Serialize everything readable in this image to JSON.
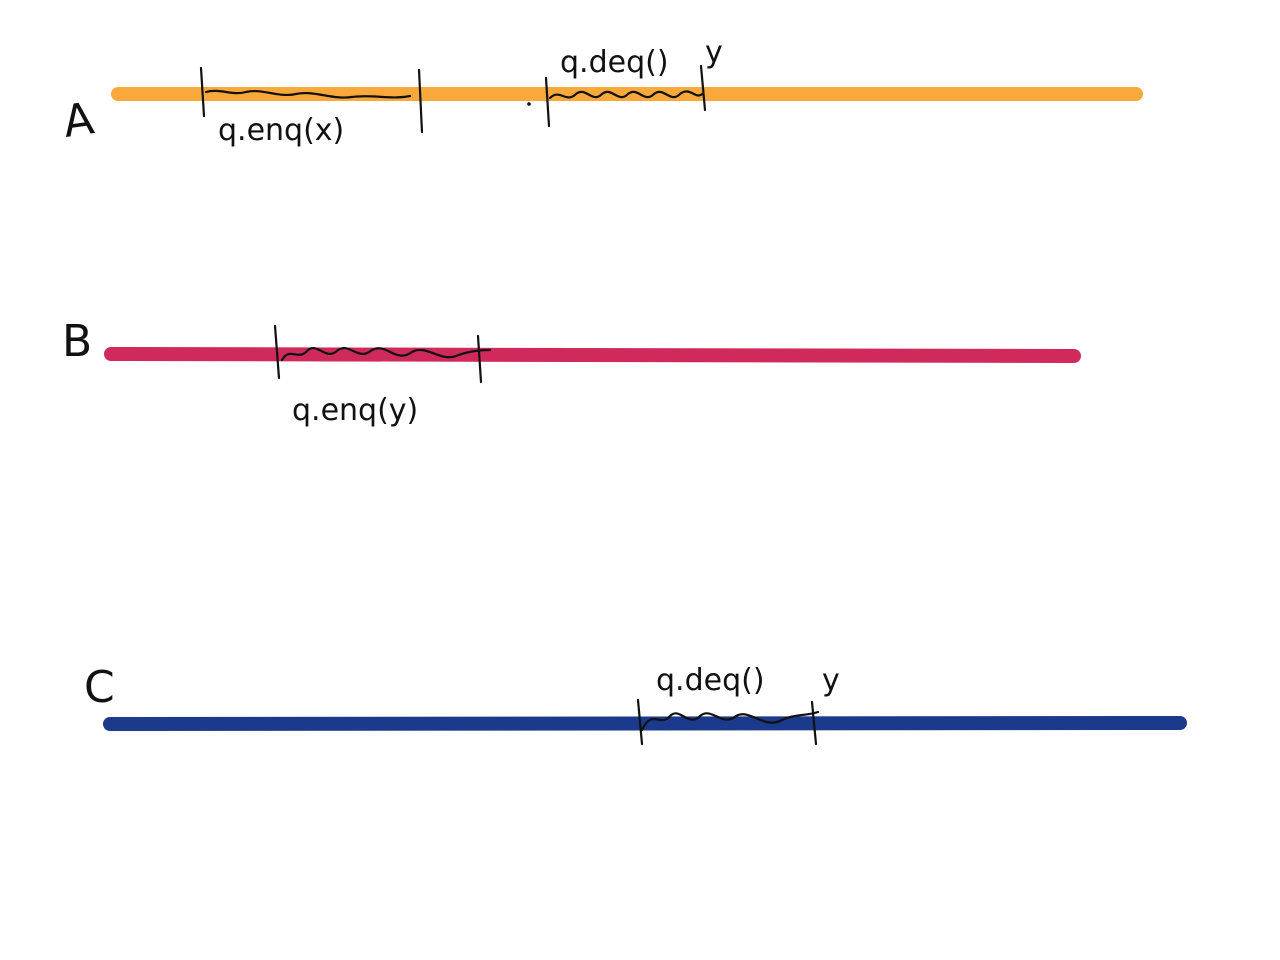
{
  "diagram": {
    "threads": [
      {
        "name": "A",
        "color": "#F9A93B",
        "operations": [
          {
            "label": "q.enq(x)",
            "result": ""
          },
          {
            "label": "q.deq()",
            "result": "y"
          }
        ]
      },
      {
        "name": "B",
        "color": "#D02A5C",
        "operations": [
          {
            "label": "q.enq(y)",
            "result": ""
          }
        ]
      },
      {
        "name": "C",
        "color": "#1B3A8C",
        "operations": [
          {
            "label": "q.deq()",
            "result": "y"
          }
        ]
      }
    ]
  }
}
